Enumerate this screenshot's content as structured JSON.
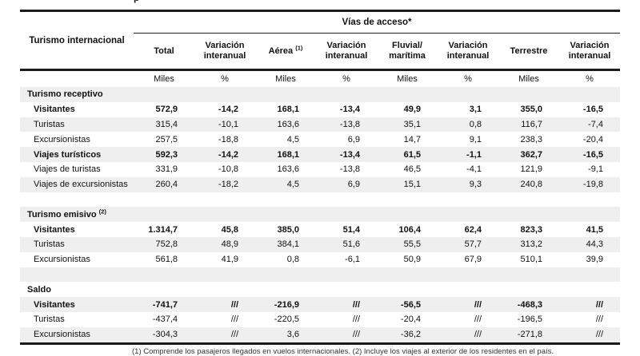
{
  "page": {
    "title_fragment": "p"
  },
  "table": {
    "corner_label": "Turismo internacional",
    "group_header": "Vías de acceso*",
    "columns": [
      {
        "label": "Total",
        "sup": "",
        "unit": "Miles"
      },
      {
        "label": "Variación interanual",
        "sup": "",
        "unit": "%"
      },
      {
        "label": "Aérea",
        "sup": "(1)",
        "unit": "Miles"
      },
      {
        "label": "Variación interanual",
        "sup": "",
        "unit": "%"
      },
      {
        "label": "Fluvial/ marítima",
        "sup": "",
        "unit": "Miles"
      },
      {
        "label": "Variación interanual",
        "sup": "",
        "unit": "%"
      },
      {
        "label": "Terrestre",
        "sup": "",
        "unit": "Miles"
      },
      {
        "label": "Variación interanual",
        "sup": "",
        "unit": "%"
      }
    ],
    "rows": [
      {
        "label": "Turismo receptivo",
        "sup": "",
        "type": "sect",
        "values": [
          "",
          "",
          "",
          "",
          "",
          "",
          "",
          ""
        ]
      },
      {
        "label": "Visitantes",
        "sup": "",
        "type": "bold",
        "values": [
          "572,9",
          "-14,2",
          "168,1",
          "-13,4",
          "49,9",
          "3,1",
          "355,0",
          "-16,5"
        ]
      },
      {
        "label": "Turistas",
        "sup": "",
        "type": "normal",
        "values": [
          "315,4",
          "-10,1",
          "163,6",
          "-13,8",
          "35,1",
          "0,8",
          "116,7",
          "-7,4"
        ]
      },
      {
        "label": "Excursionistas",
        "sup": "",
        "type": "normal",
        "values": [
          "257,5",
          "-18,8",
          "4,5",
          "6,9",
          "14,7",
          "9,1",
          "238,3",
          "-20,4"
        ]
      },
      {
        "label": "Viajes turísticos",
        "sup": "",
        "type": "bold",
        "values": [
          "592,3",
          "-14,2",
          "168,1",
          "-13,4",
          "61,5",
          "-1,1",
          "362,7",
          "-16,5"
        ]
      },
      {
        "label": "Viajes de turistas",
        "sup": "",
        "type": "normal",
        "values": [
          "331,9",
          "-10,8",
          "163,6",
          "-13,8",
          "46,5",
          "-4,1",
          "121,9",
          "-9,1"
        ]
      },
      {
        "label": "Viajes de excursionistas",
        "sup": "",
        "type": "normal",
        "values": [
          "260,4",
          "-18,2",
          "4,5",
          "6,9",
          "15,1",
          "9,3",
          "240,8",
          "-19,8"
        ]
      },
      {
        "label": "",
        "sup": "",
        "type": "spacer",
        "values": [
          "",
          "",
          "",
          "",
          "",
          "",
          "",
          ""
        ]
      },
      {
        "label": "Turismo emisivo",
        "sup": "(2)",
        "type": "sect",
        "values": [
          "",
          "",
          "",
          "",
          "",
          "",
          "",
          ""
        ]
      },
      {
        "label": "Visitantes",
        "sup": "",
        "type": "bold",
        "values": [
          "1.314,7",
          "45,8",
          "385,0",
          "51,4",
          "106,4",
          "62,4",
          "823,3",
          "41,5"
        ]
      },
      {
        "label": "Turistas",
        "sup": "",
        "type": "normal",
        "values": [
          "752,8",
          "48,9",
          "384,1",
          "51,6",
          "55,5",
          "57,7",
          "313,2",
          "44,3"
        ]
      },
      {
        "label": "Excursionistas",
        "sup": "",
        "type": "normal",
        "values": [
          "561,8",
          "41,9",
          "0,8",
          "-6,1",
          "50,9",
          "67,9",
          "510,1",
          "39,9"
        ]
      },
      {
        "label": "",
        "sup": "",
        "type": "spacer",
        "values": [
          "",
          "",
          "",
          "",
          "",
          "",
          "",
          ""
        ]
      },
      {
        "label": "Saldo",
        "sup": "",
        "type": "sect",
        "values": [
          "",
          "",
          "",
          "",
          "",
          "",
          "",
          ""
        ]
      },
      {
        "label": "Visitantes",
        "sup": "",
        "type": "bold",
        "values": [
          "-741,7",
          "///",
          "-216,9",
          "///",
          "-56,5",
          "///",
          "-468,3",
          "///"
        ]
      },
      {
        "label": "Turistas",
        "sup": "",
        "type": "normal",
        "values": [
          "-437,4",
          "///",
          "-220,5",
          "///",
          "-20,4",
          "///",
          "-196,5",
          "///"
        ]
      },
      {
        "label": "Excursionistas",
        "sup": "",
        "type": "normal",
        "values": [
          "-304,3",
          "///",
          "3,6",
          "///",
          "-36,2",
          "///",
          "-271,8",
          "///"
        ]
      }
    ],
    "footnote": "(1) Comprende los pasajeros llegados en vuelos internacionales. (2) Incluye los viajes al exterior de los residentes en el país."
  }
}
